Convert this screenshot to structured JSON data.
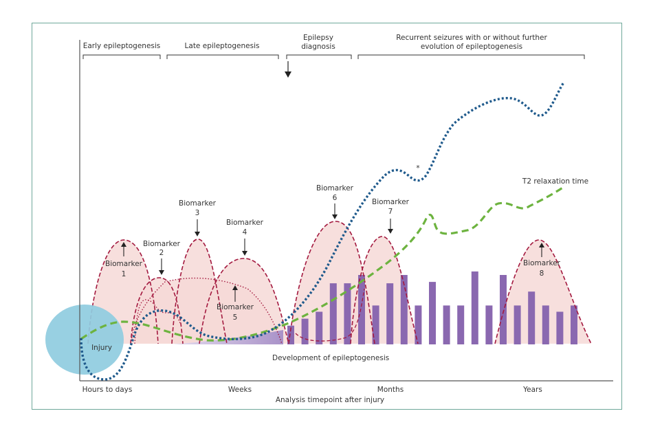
{
  "figure": {
    "phases": [
      {
        "label_lines": [
          "Early epileptogenesis"
        ]
      },
      {
        "label_lines": [
          "Late epileptogenesis"
        ]
      },
      {
        "label_lines": [
          "Epilepsy",
          "diagnosis"
        ]
      },
      {
        "label_lines": [
          "Recurrent seizures with or without further",
          "evolution of epileptogenesis"
        ]
      }
    ],
    "biomarkers": [
      {
        "name": "Biomarker",
        "number": "1",
        "arrow": "up"
      },
      {
        "name": "Biomarker",
        "number": "2",
        "arrow": "down"
      },
      {
        "name": "Biomarker",
        "number": "3",
        "arrow": "down"
      },
      {
        "name": "Biomarker",
        "number": "4",
        "arrow": "down"
      },
      {
        "name": "Biomarker",
        "number": "5",
        "arrow": "up"
      },
      {
        "name": "Biomarker",
        "number": "6",
        "arrow": "down"
      },
      {
        "name": "Biomarker",
        "number": "7",
        "arrow": "down"
      },
      {
        "name": "Biomarker",
        "number": "8",
        "arrow": "up"
      }
    ],
    "injury_label": "Injury",
    "development_label": "Development of epileptogenesis",
    "t2_label": "T2 relaxation time",
    "asterisk": "*",
    "x_ticks": [
      "Hours to days",
      "Weeks",
      "Months",
      "Years"
    ],
    "x_axis_title": "Analysis timepoint after injury",
    "seizure_bars_relative": [
      0.27,
      0.37,
      0.47,
      0.88,
      0.88,
      1.0,
      0.56,
      0.88,
      1.0,
      0.56,
      0.9,
      0.56,
      0.56,
      1.05,
      0.56,
      1.0,
      0.56,
      0.76,
      0.56,
      0.47,
      0.56
    ],
    "colors": {
      "frame": "#6fa89a",
      "biomarker_fill": "#f6d9d7",
      "biomarker_line": "#a3193f",
      "injury_circle": "#8fcce0",
      "blue_curve": "#1f5a8c",
      "green_curve": "#6db33f",
      "bars": "#8a68b0",
      "wedge": "#a992c8"
    }
  }
}
